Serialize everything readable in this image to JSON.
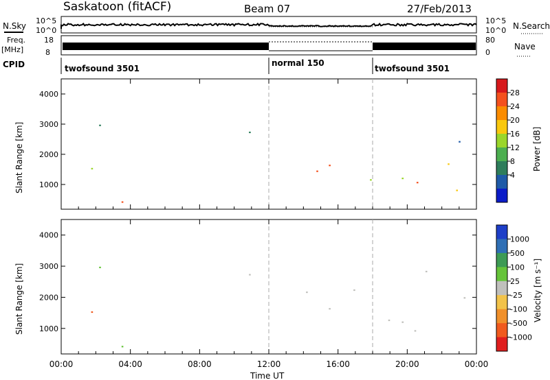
{
  "header": {
    "station": "Saskatoon (fitACF)",
    "beam": "Beam 07",
    "date": "27/Feb/2013"
  },
  "panels": {
    "nsky_label": "N.Sky",
    "nsearch_label": "N.Search",
    "nsky_ticks": [
      "10^5",
      "10^0"
    ],
    "nsearch_ticks": [
      "10^5",
      "10^0"
    ],
    "freq_label": "Freq.",
    "freq_unit": "[MHz]",
    "freq_ticks": [
      "18",
      "8"
    ],
    "nave_label": "Nave",
    "nave_ticks": [
      "80",
      "0"
    ],
    "cpid_label": "CPID",
    "cpid_segments": [
      {
        "label": "twofsound 3501",
        "start_hour": 0
      },
      {
        "label": "normal 150",
        "start_hour": 12
      },
      {
        "label": "twofsound 3501",
        "start_hour": 18
      }
    ]
  },
  "chart_data": [
    {
      "type": "heatmap",
      "name": "power",
      "ylabel": "Slant Range [km]",
      "colorbar_label": "Power [dB]",
      "colorbar_ticks": [
        "28",
        "24",
        "20",
        "16",
        "12",
        "8",
        "4"
      ],
      "colorbar_colors": [
        "#d7191c",
        "#f4511e",
        "#fb8c00",
        "#f9c80e",
        "#9ad62b",
        "#4caf50",
        "#2e7d5b",
        "#1e5aa8",
        "#0b1cc8"
      ],
      "ylim": [
        180,
        4500
      ],
      "y_ticks": [
        1000,
        2000,
        3000,
        4000
      ],
      "xlim_hours": [
        0,
        24
      ],
      "dashed_lines_hours": [
        12,
        18
      ]
    },
    {
      "type": "heatmap",
      "name": "velocity",
      "ylabel": "Slant Range [km]",
      "colorbar_label": "Velocity [m s⁻¹]",
      "colorbar_ticks": [
        "1000",
        "500",
        "100",
        "25",
        "-25",
        "-100",
        "-500",
        "-1000"
      ],
      "colorbar_colors": [
        "#1e3fc8",
        "#2f6fb5",
        "#3e9b55",
        "#66c43a",
        "#c0c0bc",
        "#f2c34a",
        "#f0902b",
        "#f05a1e",
        "#e01e1e"
      ],
      "ylim": [
        180,
        4500
      ],
      "y_ticks": [
        1000,
        2000,
        3000,
        4000
      ],
      "xlim_hours": [
        0,
        24
      ],
      "dashed_lines_hours": [
        12,
        18
      ]
    }
  ],
  "xaxis": {
    "tick_labels": [
      "00:00",
      "04:00",
      "08:00",
      "12:00",
      "16:00",
      "20:00",
      "00:00"
    ],
    "label": "Time UT"
  }
}
